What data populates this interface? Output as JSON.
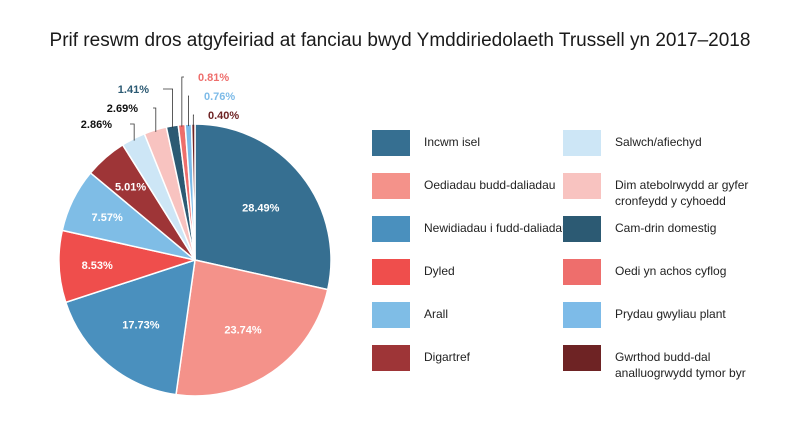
{
  "chart_data": {
    "type": "pie",
    "title": "Prif reswm dros atgyfeiriad at fanciau bwyd Ymddiriedolaeth Trussell yn 2017–2018",
    "slices": [
      {
        "label": "Incwm isel",
        "value": 28.49,
        "display": "28.49%",
        "color": "#366f91"
      },
      {
        "label": "Oediadau budd-daliadau",
        "value": 23.74,
        "display": "23.74%",
        "color": "#f4928a"
      },
      {
        "label": "Newidiadau i fudd-daliadau",
        "value": 17.73,
        "display": "17.73%",
        "color": "#4a90be"
      },
      {
        "label": "Dyled",
        "value": 8.53,
        "display": "8.53%",
        "color": "#ef4e4c"
      },
      {
        "label": "Arall",
        "value": 7.57,
        "display": "7.57%",
        "color": "#7fbde6"
      },
      {
        "label": "Digartref",
        "value": 5.01,
        "display": "5.01%",
        "color": "#9e3537"
      },
      {
        "label": "Salwch/afiechyd",
        "value": 2.86,
        "display": "2.86%",
        "color": "#cde6f6"
      },
      {
        "label": "Dim atebolrwydd ar gyfer cronfeydd y cyhoedd",
        "value": 2.69,
        "display": "2.69%",
        "color": "#f8c3c0"
      },
      {
        "label": "Cam-drin domestig",
        "value": 1.41,
        "display": "1.41%",
        "color": "#2c5a73"
      },
      {
        "label": "Oedi yn achos cyflog",
        "value": 0.81,
        "display": "0.81%",
        "color": "#ee6e6c"
      },
      {
        "label": "Prydau gwyliau plant",
        "value": 0.76,
        "display": "0.76%",
        "color": "#7dbbe8"
      },
      {
        "label": "Gwrthod budd-dal analluogrwydd tymor byr",
        "value": 0.4,
        "display": "0.40%",
        "color": "#6e2324"
      }
    ],
    "legend_placement": "right",
    "legend_columns": [
      [
        {
          "line1": "Incwm isel",
          "line2": "",
          "color": "#366f91"
        },
        {
          "line1": "Oediadau budd-daliadau",
          "line2": "",
          "color": "#f4928a"
        },
        {
          "line1": "Newidiadau i fudd-daliadau",
          "line2": "",
          "color": "#4a90be"
        },
        {
          "line1": "Dyled",
          "line2": "",
          "color": "#ef4e4c"
        },
        {
          "line1": "Arall",
          "line2": "",
          "color": "#7fbde6"
        },
        {
          "line1": "Digartref",
          "line2": "",
          "color": "#9e3537"
        }
      ],
      [
        {
          "line1": "Salwch/afiechyd",
          "line2": "",
          "color": "#cde6f6"
        },
        {
          "line1": "Dim atebolrwydd ar gyfer",
          "line2": "cronfeydd y cyhoedd",
          "color": "#f8c3c0"
        },
        {
          "line1": "Cam-drin domestig",
          "line2": "",
          "color": "#2c5a73"
        },
        {
          "line1": "Oedi yn achos cyflog",
          "line2": "",
          "color": "#ee6e6c"
        },
        {
          "line1": "Prydau gwyliau plant",
          "line2": "",
          "color": "#7dbbe8"
        },
        {
          "line1": "Gwrthod budd-dal",
          "line2": "analluogrwydd tymor byr",
          "color": "#6e2324"
        }
      ]
    ]
  }
}
